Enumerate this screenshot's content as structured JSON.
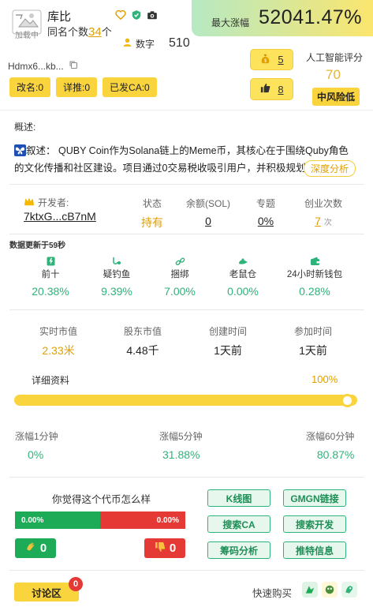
{
  "header": {
    "logo_text": "加载中",
    "token_name": "库比",
    "same_name_prefix": "同名个数",
    "same_name_count": "34",
    "same_name_suffix": "个",
    "digit_label": "数字",
    "digit_value": "510",
    "max_rise_label": "最大涨幅",
    "max_rise_value": "52041.47%",
    "address_short": "Hdmx6...kb...",
    "tags": [
      "改名:0",
      "详推:0",
      "已发CA:0"
    ],
    "bag_count": "5",
    "like_count": "8",
    "ai_label": "人工智能评分",
    "ai_score": "70",
    "risk_label": "中风险低"
  },
  "overview": {
    "title": "概述:",
    "description_lead": "叙述：",
    "description": "QUBY Coin作为Solana链上的Meme币，其核心在于围绕Quby角色的文化传播和社区建设。项目通过0交易税收吸引用户，并积极规划其",
    "deep_analysis": "深度分析"
  },
  "developer": {
    "label": "开发者:",
    "address": "7ktxG...cB7nM",
    "status_label": "状态",
    "status_value": "持有",
    "balance_label": "余额(SOL)",
    "balance_value": "0",
    "topic_label": "专题",
    "topic_value": "0%",
    "startups_label": "创业次数",
    "startups_value": "7",
    "startups_unit": "次"
  },
  "update_text": "数据更新于59秒",
  "metrics": [
    {
      "label": "前十",
      "value": "20.38%",
      "icon": "top10-icon"
    },
    {
      "label": "疑钓鱼",
      "value": "9.39%",
      "icon": "fishing-icon"
    },
    {
      "label": "捆绑",
      "value": "7.00%",
      "icon": "link-icon"
    },
    {
      "label": "老鼠仓",
      "value": "0.00%",
      "icon": "rat-icon"
    },
    {
      "label": "24小时新钱包",
      "value": "0.28%",
      "icon": "wallet-icon"
    }
  ],
  "market": [
    {
      "label": "实时市值",
      "value": "2.33米"
    },
    {
      "label": "股东市值",
      "value": "4.48千"
    },
    {
      "label": "创建时间",
      "value": "1天前"
    },
    {
      "label": "参加时间",
      "value": "1天前"
    }
  ],
  "detail": {
    "label": "详细资料",
    "percent": "100%",
    "progress": 1.0
  },
  "rises": [
    {
      "label": "涨幅1分钟",
      "value": "0%"
    },
    {
      "label": "涨幅5分钟",
      "value": "31.88%"
    },
    {
      "label": "涨幅60分钟",
      "value": "80.87%"
    }
  ],
  "vote": {
    "question": "你觉得这个代币怎么样",
    "green_pct": "0.00%",
    "red_pct": "0.00%",
    "up_count": "0",
    "down_count": "0"
  },
  "actions": [
    "K线图",
    "GMGN链接",
    "搜索CA",
    "搜索开发",
    "筹码分析",
    "推特信息"
  ],
  "footer": {
    "discuss_label": "讨论区",
    "discuss_badge": "0",
    "quick_buy": "快速购买"
  },
  "colors": {
    "accent_yellow": "#fad43c",
    "green": "#2fb37a",
    "red": "#e53935",
    "gold_text": "#e0a000"
  }
}
